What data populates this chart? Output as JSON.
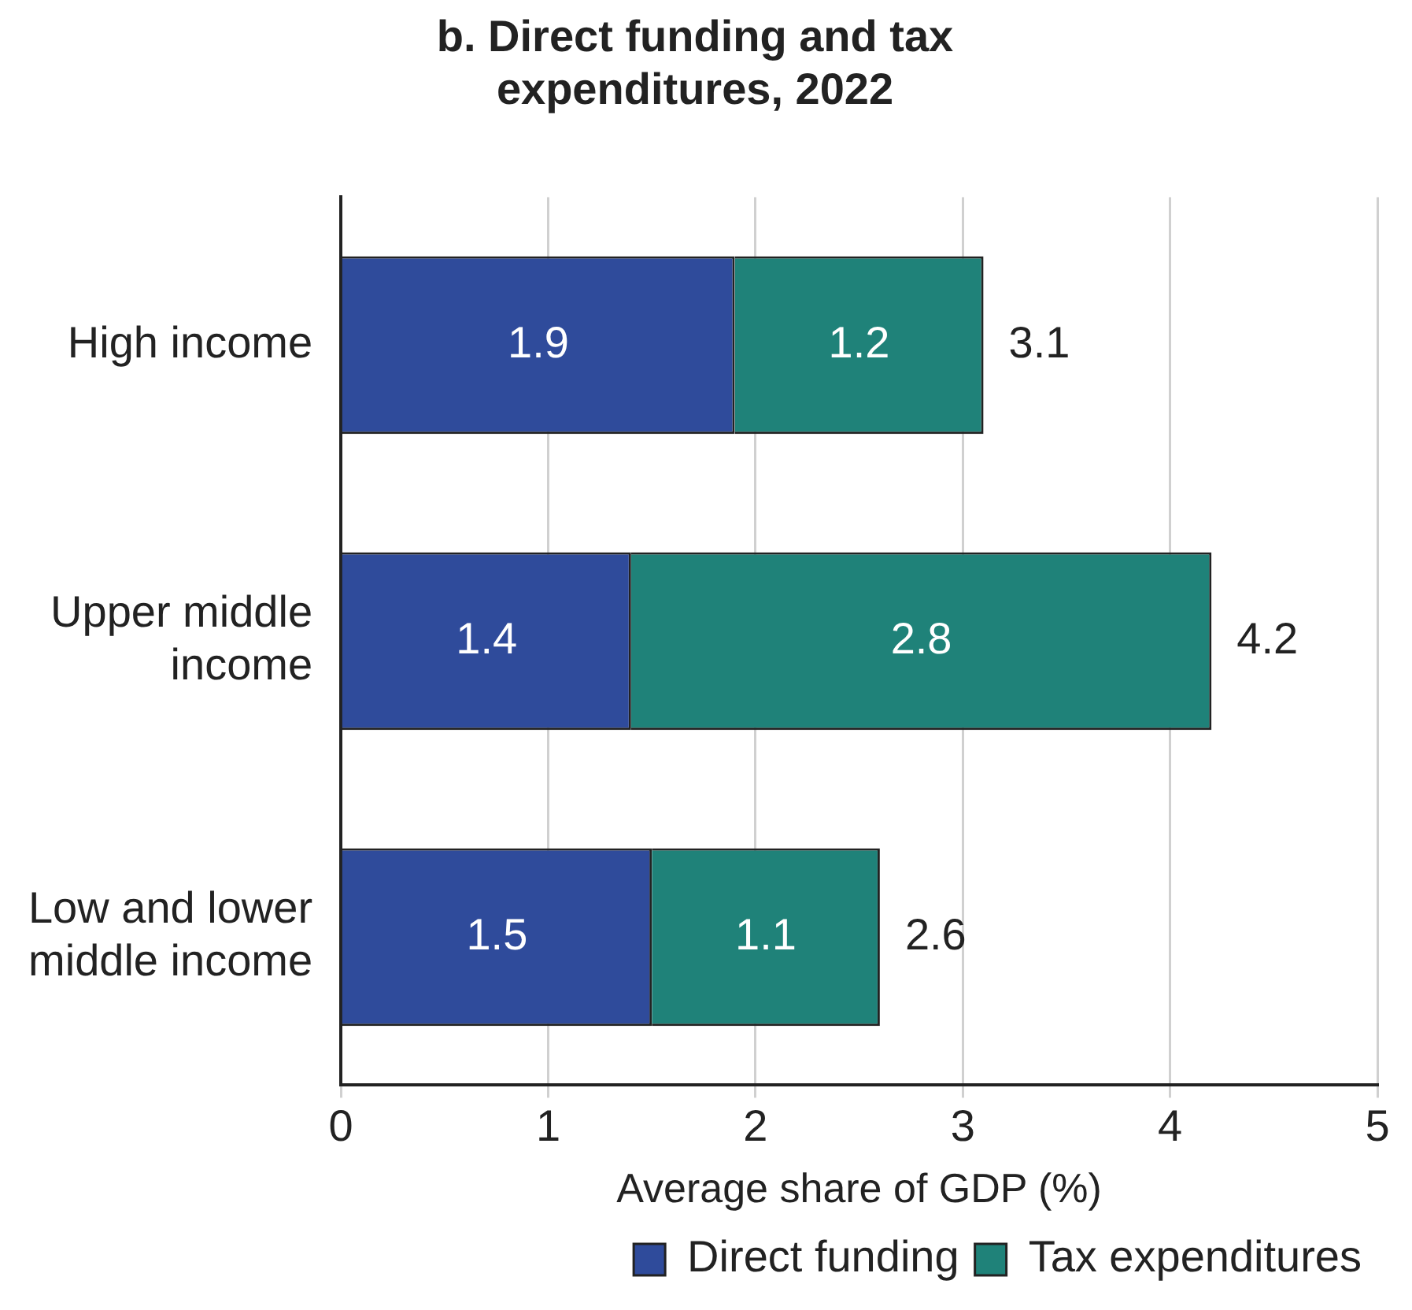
{
  "chart_data": {
    "type": "bar",
    "orientation": "horizontal",
    "stacked": true,
    "title": "b. Direct funding and tax expenditures, 2022",
    "xlabel": "Average share of GDP (%)",
    "categories": [
      "High income",
      "Upper middle income",
      "Low and lower middle income"
    ],
    "series": [
      {
        "name": "Direct funding",
        "color": "#2f4b9b",
        "values": [
          1.9,
          1.4,
          1.5
        ]
      },
      {
        "name": "Tax expenditures",
        "color": "#1f8279",
        "values": [
          1.2,
          2.8,
          1.1
        ]
      }
    ],
    "xlim": [
      0,
      5
    ],
    "xticks": [
      0,
      1,
      2,
      3,
      4,
      5
    ],
    "grid": "x",
    "legend": "bottom",
    "data_labels": true,
    "totals": [
      "3.1",
      "4.2",
      "2.6"
    ]
  }
}
